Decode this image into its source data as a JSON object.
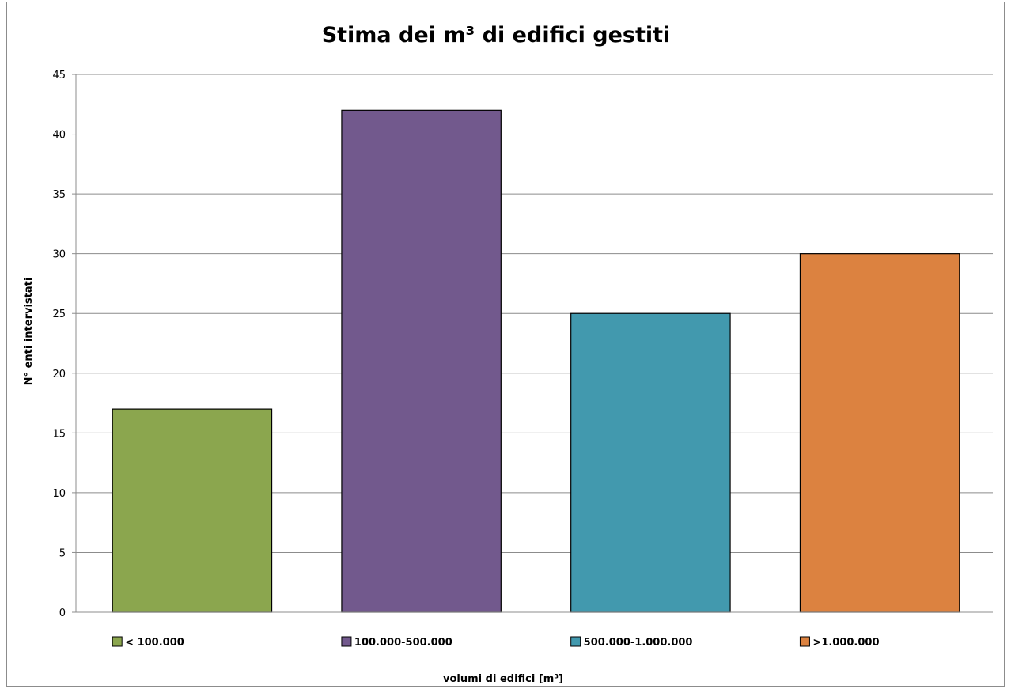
{
  "chart_data": {
    "type": "bar",
    "title": "Stima dei m³ di edifici gestiti",
    "xlabel": "volumi di edifici [m³]",
    "ylabel": "N° enti intervistati",
    "categories": [
      "< 100.000",
      "100.000-500.000",
      "500.000-1.000.000",
      ">1.000.000"
    ],
    "values": [
      17,
      42,
      25,
      30
    ],
    "colors": [
      "#8ba64e",
      "#72598d",
      "#4299ae",
      "#dc8240"
    ],
    "ylim": [
      0,
      45
    ],
    "yticks": [
      0,
      5,
      10,
      15,
      20,
      25,
      30,
      35,
      40,
      45
    ],
    "grid": true,
    "legend": {
      "placement": "bottom",
      "entries": [
        "< 100.000",
        "100.000-500.000",
        "500.000-1.000.000",
        ">1.000.000"
      ]
    }
  }
}
